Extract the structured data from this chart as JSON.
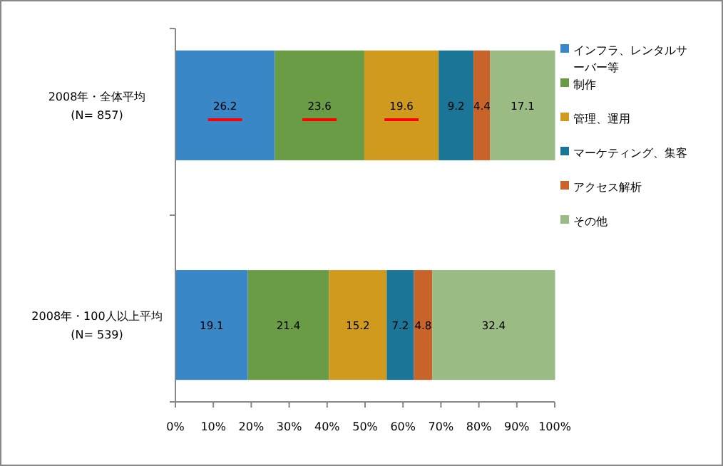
{
  "chart_data": {
    "type": "bar",
    "orientation": "horizontal",
    "stacked": true,
    "data_labels": true,
    "legend": "right",
    "grid": false,
    "categories": [
      "2008年・全体平均\n(N= 857)",
      "2008年・100人以上平均\n(N= 539)"
    ],
    "series": [
      {
        "name": "インフラ、レンタルサーバー等",
        "color": "#3a87c8",
        "values": [
          26.2,
          19.1
        ]
      },
      {
        "name": "制作",
        "color": "#6a9c45",
        "values": [
          23.6,
          21.4
        ]
      },
      {
        "name": "管理、運用",
        "color": "#d09a1e",
        "values": [
          19.6,
          15.2
        ]
      },
      {
        "name": "マーケティング、集客",
        "color": "#1a7597",
        "values": [
          9.2,
          7.2
        ]
      },
      {
        "name": "アクセス解析",
        "color": "#c8642a",
        "values": [
          4.4,
          4.8
        ]
      },
      {
        "name": "その他",
        "color": "#9bbb84",
        "values": [
          17.1,
          32.4
        ]
      }
    ],
    "xlim": [
      0,
      100
    ],
    "xticks": [
      {
        "value": 0,
        "label": "0%"
      },
      {
        "value": 10,
        "label": "10%"
      },
      {
        "value": 20,
        "label": "20%"
      },
      {
        "value": 30,
        "label": "30%"
      },
      {
        "value": 40,
        "label": "40%"
      },
      {
        "value": 50,
        "label": "50%"
      },
      {
        "value": 60,
        "label": "60%"
      },
      {
        "value": 70,
        "label": "70%"
      },
      {
        "value": 80,
        "label": "80%"
      },
      {
        "value": 90,
        "label": "90%"
      },
      {
        "value": 100,
        "label": "100%"
      }
    ]
  }
}
